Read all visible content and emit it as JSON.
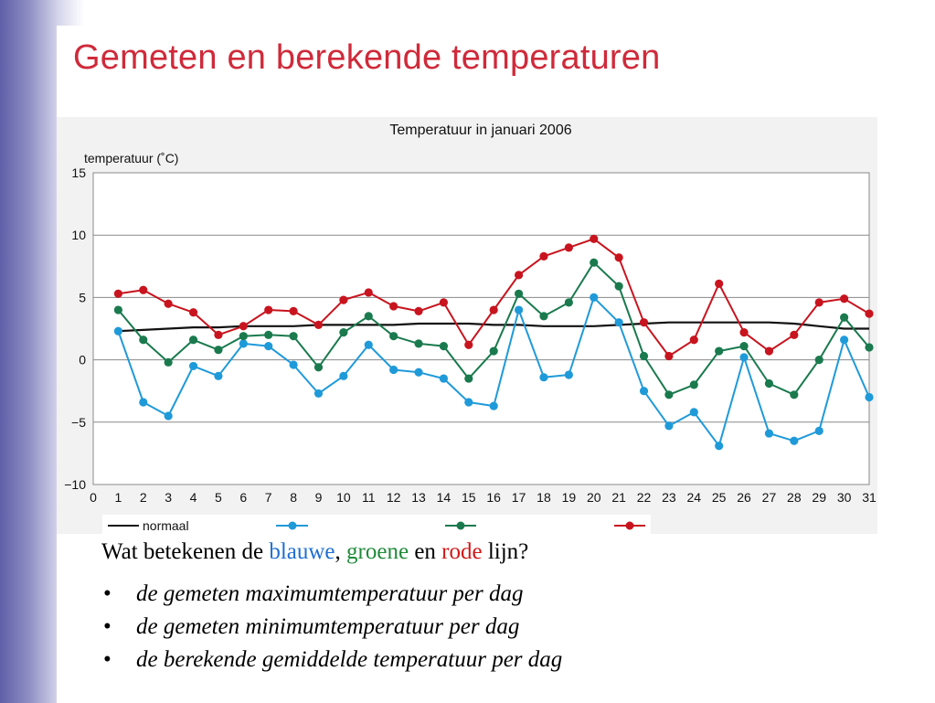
{
  "slide": {
    "title": "Gemeten en berekende temperaturen",
    "question": {
      "prefix": "Wat betekenen de ",
      "blue_word": "blauwe",
      "comma": ",",
      "green_word": "groene",
      "and": " en ",
      "red_word": "rode",
      "suffix": " lijn?"
    },
    "answers": [
      "de gemeten maximumtemperatuur per dag",
      "de gemeten minimumtemperatuur per dag",
      "de berekende gemiddelde temperatuur per dag"
    ],
    "bullet": "•"
  },
  "colors": {
    "title": "#cf2a3a",
    "blue": "#1f9ad9",
    "green": "#1a7a4e",
    "red": "#c8141e",
    "normal": "#111111",
    "grid": "#888888"
  },
  "chart_data": {
    "type": "line",
    "title": "Temperatuur in januari 2006",
    "ylabel": "temperatuur (˚C)",
    "xlabel": "",
    "xlim": [
      0,
      31
    ],
    "ylim": [
      -10,
      15
    ],
    "y_ticks": [
      15,
      10,
      5,
      0,
      -5,
      -10
    ],
    "y_tick_labels": [
      "15",
      "10",
      "5",
      "0",
      "−5",
      "−10"
    ],
    "grid": "horizontal",
    "x": [
      1,
      2,
      3,
      4,
      5,
      6,
      7,
      8,
      9,
      10,
      11,
      12,
      13,
      14,
      15,
      16,
      17,
      18,
      19,
      20,
      21,
      22,
      23,
      24,
      25,
      26,
      27,
      28,
      29,
      30,
      31
    ],
    "x_tick_labels": [
      "0",
      "1",
      "2",
      "3",
      "4",
      "5",
      "6",
      "7",
      "8",
      "9",
      "10",
      "11",
      "12",
      "13",
      "14",
      "15",
      "16",
      "17",
      "18",
      "19",
      "20",
      "21",
      "22",
      "23",
      "24",
      "25",
      "26",
      "27",
      "28",
      "29",
      "30",
      "31"
    ],
    "legend_position": "bottom",
    "series": [
      {
        "name": "normaal",
        "color": "#111111",
        "markers": false,
        "values": [
          2.3,
          2.4,
          2.5,
          2.6,
          2.6,
          2.7,
          2.7,
          2.7,
          2.8,
          2.8,
          2.8,
          2.8,
          2.9,
          2.9,
          2.9,
          2.8,
          2.8,
          2.7,
          2.7,
          2.7,
          2.8,
          2.9,
          3.0,
          3.0,
          3.0,
          3.0,
          3.0,
          2.9,
          2.7,
          2.5,
          2.5
        ]
      },
      {
        "name": "",
        "color": "#1f9ad9",
        "markers": true,
        "values": [
          2.3,
          -3.4,
          -4.5,
          -0.5,
          -1.3,
          1.3,
          1.1,
          -0.4,
          -2.7,
          -1.3,
          1.2,
          -0.8,
          -1.0,
          -1.5,
          -3.4,
          -3.7,
          4.0,
          -1.4,
          -1.2,
          5.0,
          3.0,
          -2.5,
          -5.3,
          -4.2,
          -6.9,
          0.2,
          -5.9,
          -6.5,
          -5.7,
          1.6,
          -3.0
        ]
      },
      {
        "name": "",
        "color": "#1a7a4e",
        "markers": true,
        "values": [
          4.0,
          1.6,
          -0.2,
          1.6,
          0.8,
          1.9,
          2.0,
          1.9,
          -0.6,
          2.2,
          3.5,
          1.9,
          1.3,
          1.1,
          -1.5,
          0.7,
          5.3,
          3.5,
          4.6,
          7.8,
          5.9,
          0.3,
          -2.8,
          -2.0,
          0.7,
          1.1,
          -1.9,
          -2.8,
          0.0,
          3.4,
          1.0
        ]
      },
      {
        "name": "",
        "color": "#c8141e",
        "markers": true,
        "values": [
          5.3,
          5.6,
          4.5,
          3.8,
          2.0,
          2.7,
          4.0,
          3.9,
          2.8,
          4.8,
          5.4,
          4.3,
          3.9,
          4.6,
          1.2,
          4.0,
          6.8,
          8.3,
          9.0,
          9.7,
          8.2,
          3.0,
          0.3,
          1.6,
          6.1,
          2.2,
          0.7,
          2.0,
          4.6,
          4.9,
          3.7
        ]
      }
    ]
  }
}
